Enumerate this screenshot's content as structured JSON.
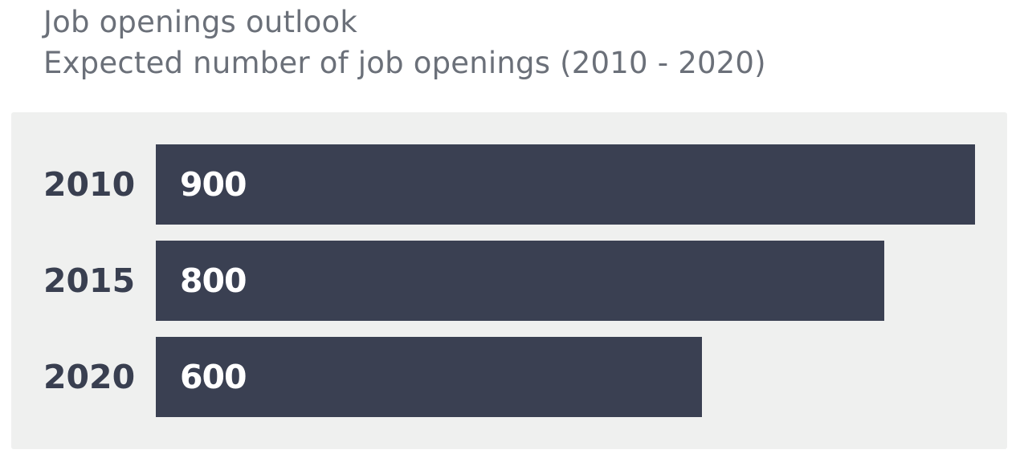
{
  "chart_data": {
    "type": "bar",
    "orientation": "horizontal",
    "title": "Job openings outlook",
    "subtitle": "Expected number of job openings (2010 - 2020)",
    "categories": [
      "2010",
      "2015",
      "2020"
    ],
    "values": [
      900,
      800,
      600
    ],
    "value_labels": [
      "900",
      "800",
      "600"
    ],
    "xlim": [
      0,
      900
    ],
    "grid": false,
    "legend": "none",
    "bar_color": "#3a4052",
    "background_color": "#eff0ef"
  }
}
